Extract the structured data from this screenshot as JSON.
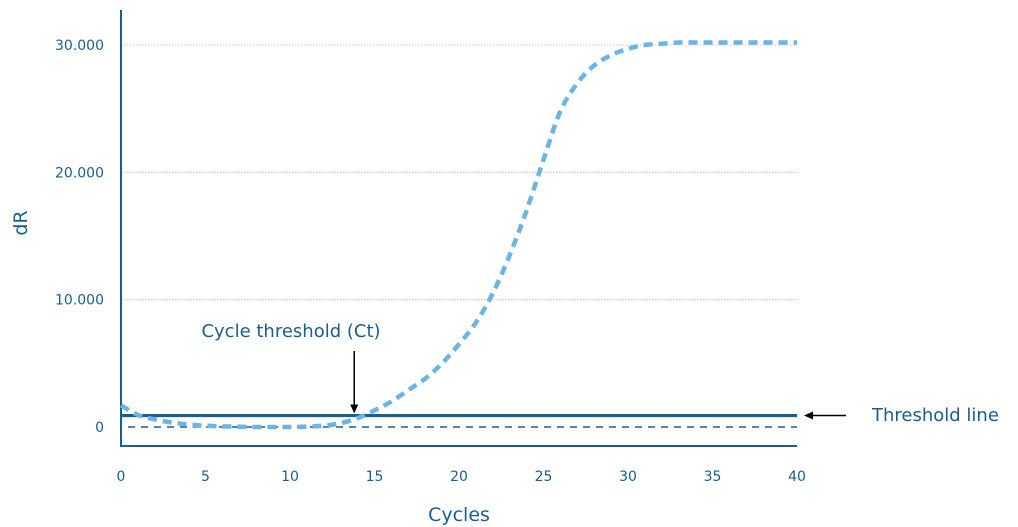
{
  "chart_data": {
    "type": "line",
    "title": "",
    "xlabel": "Cycles",
    "ylabel": "dR",
    "xlim": [
      0,
      40
    ],
    "ylim": [
      -1500,
      32000
    ],
    "x_ticks": [
      0,
      5,
      10,
      15,
      20,
      25,
      30,
      35,
      40
    ],
    "x_tick_labels": [
      "0",
      "5",
      "10",
      "15",
      "20",
      "25",
      "30",
      "35",
      "40"
    ],
    "y_ticks": [
      0,
      10000,
      20000,
      30000
    ],
    "y_tick_labels": [
      "0",
      "10.000",
      "20.000",
      "30.000"
    ],
    "grid": true,
    "colors": {
      "axis": "#1a5f8c",
      "curve": "#6ab4e6",
      "threshold": "#1a5f8c",
      "grid": "#b8b8b8",
      "arrow": "#000000"
    },
    "series": [
      {
        "style": "dotted",
        "x": [
          0,
          1,
          2,
          3,
          4,
          5,
          6,
          7,
          8,
          9,
          10,
          11,
          12,
          13,
          14,
          15,
          16,
          17,
          18,
          19,
          20,
          21,
          22,
          23,
          24,
          25,
          26,
          27,
          28,
          29,
          30,
          31,
          32,
          33,
          34,
          35,
          36,
          37,
          38,
          39,
          40
        ],
        "y": [
          1700,
          950,
          600,
          350,
          200,
          100,
          50,
          20,
          0,
          0,
          0,
          30,
          100,
          300,
          700,
          1300,
          2000,
          2900,
          3800,
          5000,
          6500,
          8200,
          10500,
          13500,
          17000,
          21000,
          24800,
          27000,
          28400,
          29200,
          29700,
          30000,
          30100,
          30200,
          30200,
          30200,
          30200,
          30200,
          30200,
          30200,
          30200
        ]
      }
    ],
    "threshold_line": {
      "label": "Threshold line",
      "value": 900
    },
    "baseline": {
      "style": "dashed",
      "value": 0
    },
    "ct_annotation": {
      "label": "Cycle threshold (Ct)",
      "x": 13.8
    }
  }
}
